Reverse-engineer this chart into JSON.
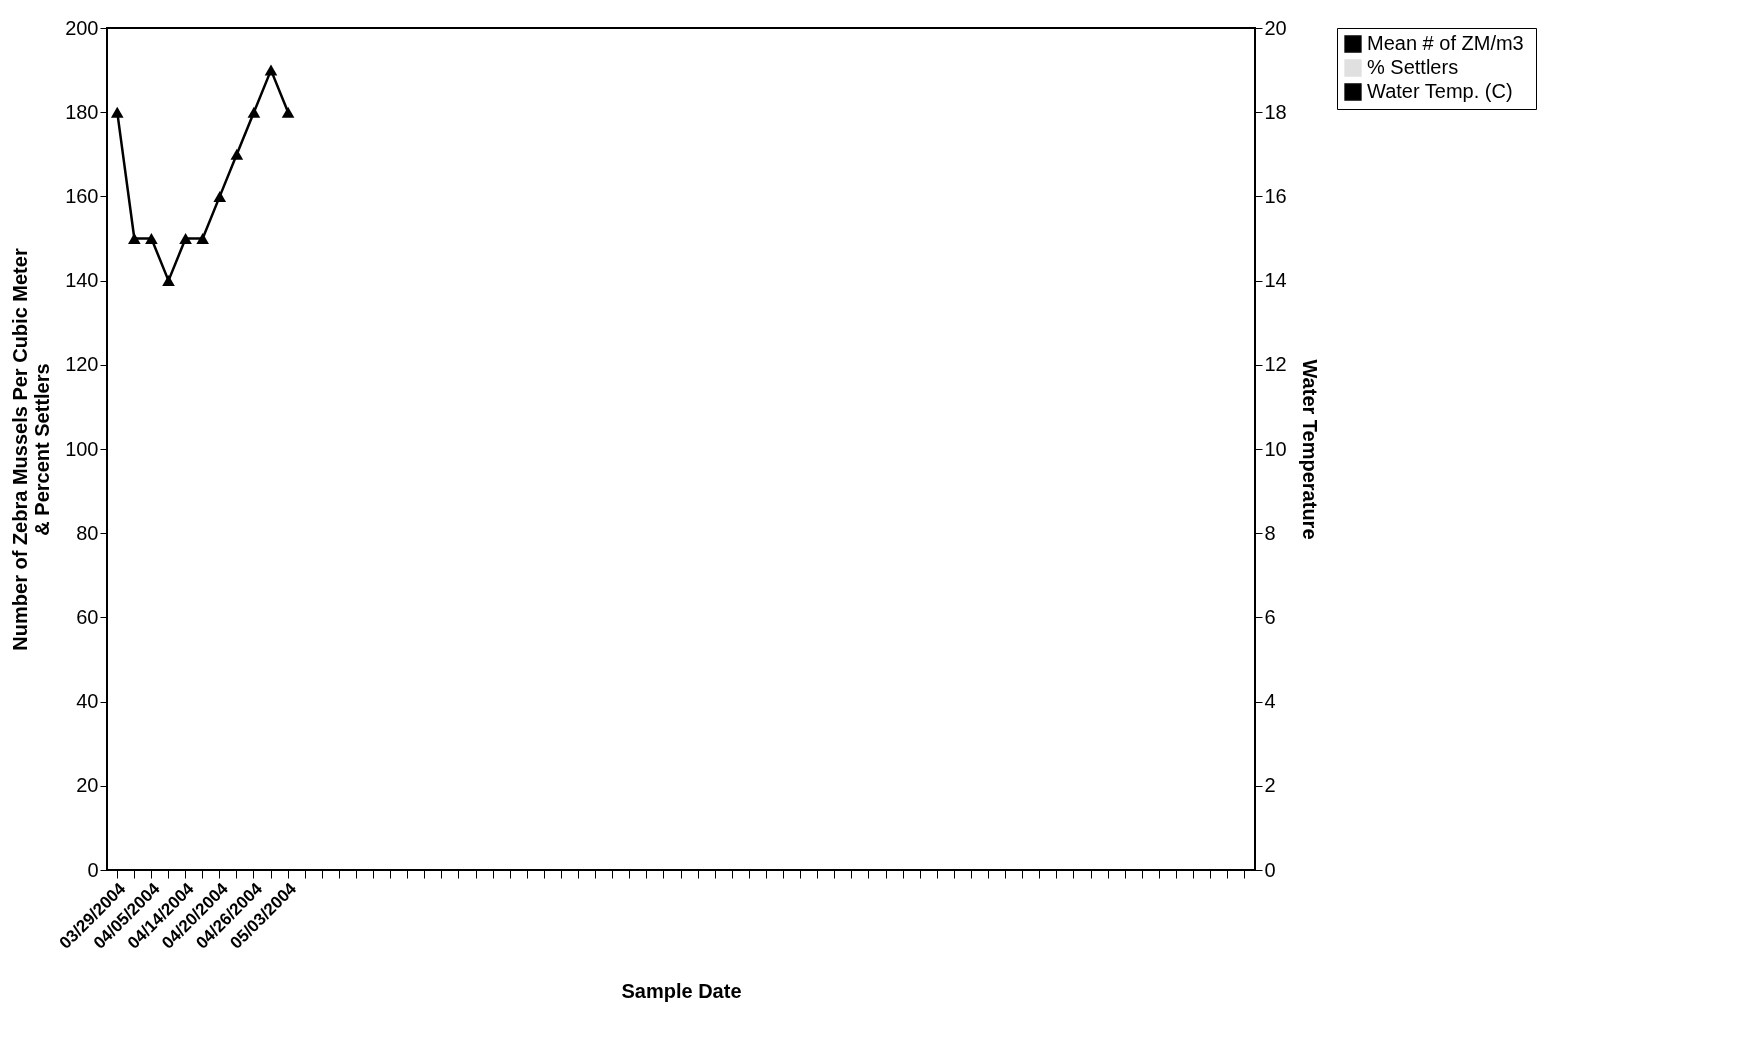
{
  "chart_data": {
    "type": "bar",
    "xlabel": "Sample Date",
    "ylabel": "Number of Zebra Mussels Per Cubic Meter\n& Percent Settlers",
    "y2label": "Water Temperature",
    "categories": [
      "03/29/2004",
      null,
      "04/05/2004",
      null,
      "04/14/2004",
      null,
      "04/20/2004",
      null,
      "04/26/2004",
      null,
      "05/03/2004",
      null,
      null,
      null,
      null,
      null,
      null,
      null,
      null,
      null,
      null,
      null,
      null,
      null,
      null,
      null,
      null,
      null,
      null,
      null,
      null,
      null,
      null,
      null,
      null,
      null,
      null,
      null,
      null,
      null,
      null,
      null,
      null,
      null,
      null,
      null,
      null,
      null,
      null,
      null,
      null,
      null,
      null,
      null,
      null,
      null,
      null,
      null,
      null,
      null,
      null,
      null,
      null,
      null,
      null,
      null,
      null
    ],
    "series": [
      {
        "name": "Mean #  of ZM/m3",
        "color": "#000000",
        "values": [
          null,
          null,
          null,
          null,
          null,
          null,
          null,
          null,
          null,
          null,
          null,
          null,
          null,
          null,
          null,
          null,
          null,
          null,
          null,
          null,
          null,
          null,
          null,
          null,
          null,
          null,
          null,
          null,
          null,
          null,
          null,
          null,
          null,
          null,
          null,
          null,
          null,
          null,
          null,
          null,
          null,
          null,
          null,
          null,
          null,
          null,
          null,
          null,
          null,
          null,
          null,
          null,
          null,
          null,
          null,
          null,
          null,
          null,
          null,
          null,
          null,
          null,
          null,
          null,
          null,
          null,
          null
        ]
      },
      {
        "name": "% Settlers",
        "color": "#e0e0e0",
        "values": [
          null,
          null,
          null,
          null,
          null,
          null,
          null,
          null,
          null,
          null,
          null,
          null,
          null,
          null,
          null,
          null,
          null,
          null,
          null,
          null,
          null,
          null,
          null,
          null,
          null,
          null,
          null,
          null,
          null,
          null,
          null,
          null,
          null,
          null,
          null,
          null,
          null,
          null,
          null,
          null,
          null,
          null,
          null,
          null,
          null,
          null,
          null,
          null,
          null,
          null,
          null,
          null,
          null,
          null,
          null,
          null,
          null,
          null,
          null,
          null,
          null,
          null,
          null,
          null,
          null,
          null,
          null
        ]
      },
      {
        "name": "Water Temp. (C)",
        "type": "line",
        "axis": "y2",
        "color": "#000000",
        "values": [
          18,
          15,
          15,
          14,
          15,
          15,
          16,
          17,
          18,
          19,
          18,
          null,
          null,
          null,
          null,
          null,
          null,
          null,
          null,
          null,
          null,
          null,
          null,
          null,
          null,
          null,
          null,
          null,
          null,
          null,
          null,
          null,
          null,
          null,
          null,
          null,
          null,
          null,
          null,
          null,
          null,
          null,
          null,
          null,
          null,
          null,
          null,
          null,
          null,
          null,
          null,
          null,
          null,
          null,
          null,
          null,
          null,
          null,
          null,
          null,
          null,
          null,
          null,
          null,
          null,
          null,
          null
        ]
      }
    ],
    "ylim": [
      0,
      200
    ],
    "yticks": [
      0,
      20,
      40,
      60,
      80,
      100,
      120,
      140,
      160,
      180,
      200
    ],
    "y2lim": [
      0,
      20
    ],
    "y2ticks": [
      0,
      2,
      4,
      6,
      8,
      10,
      12,
      14,
      16,
      18,
      20
    ],
    "marker": "triangle",
    "legend": "right",
    "grid": false
  }
}
